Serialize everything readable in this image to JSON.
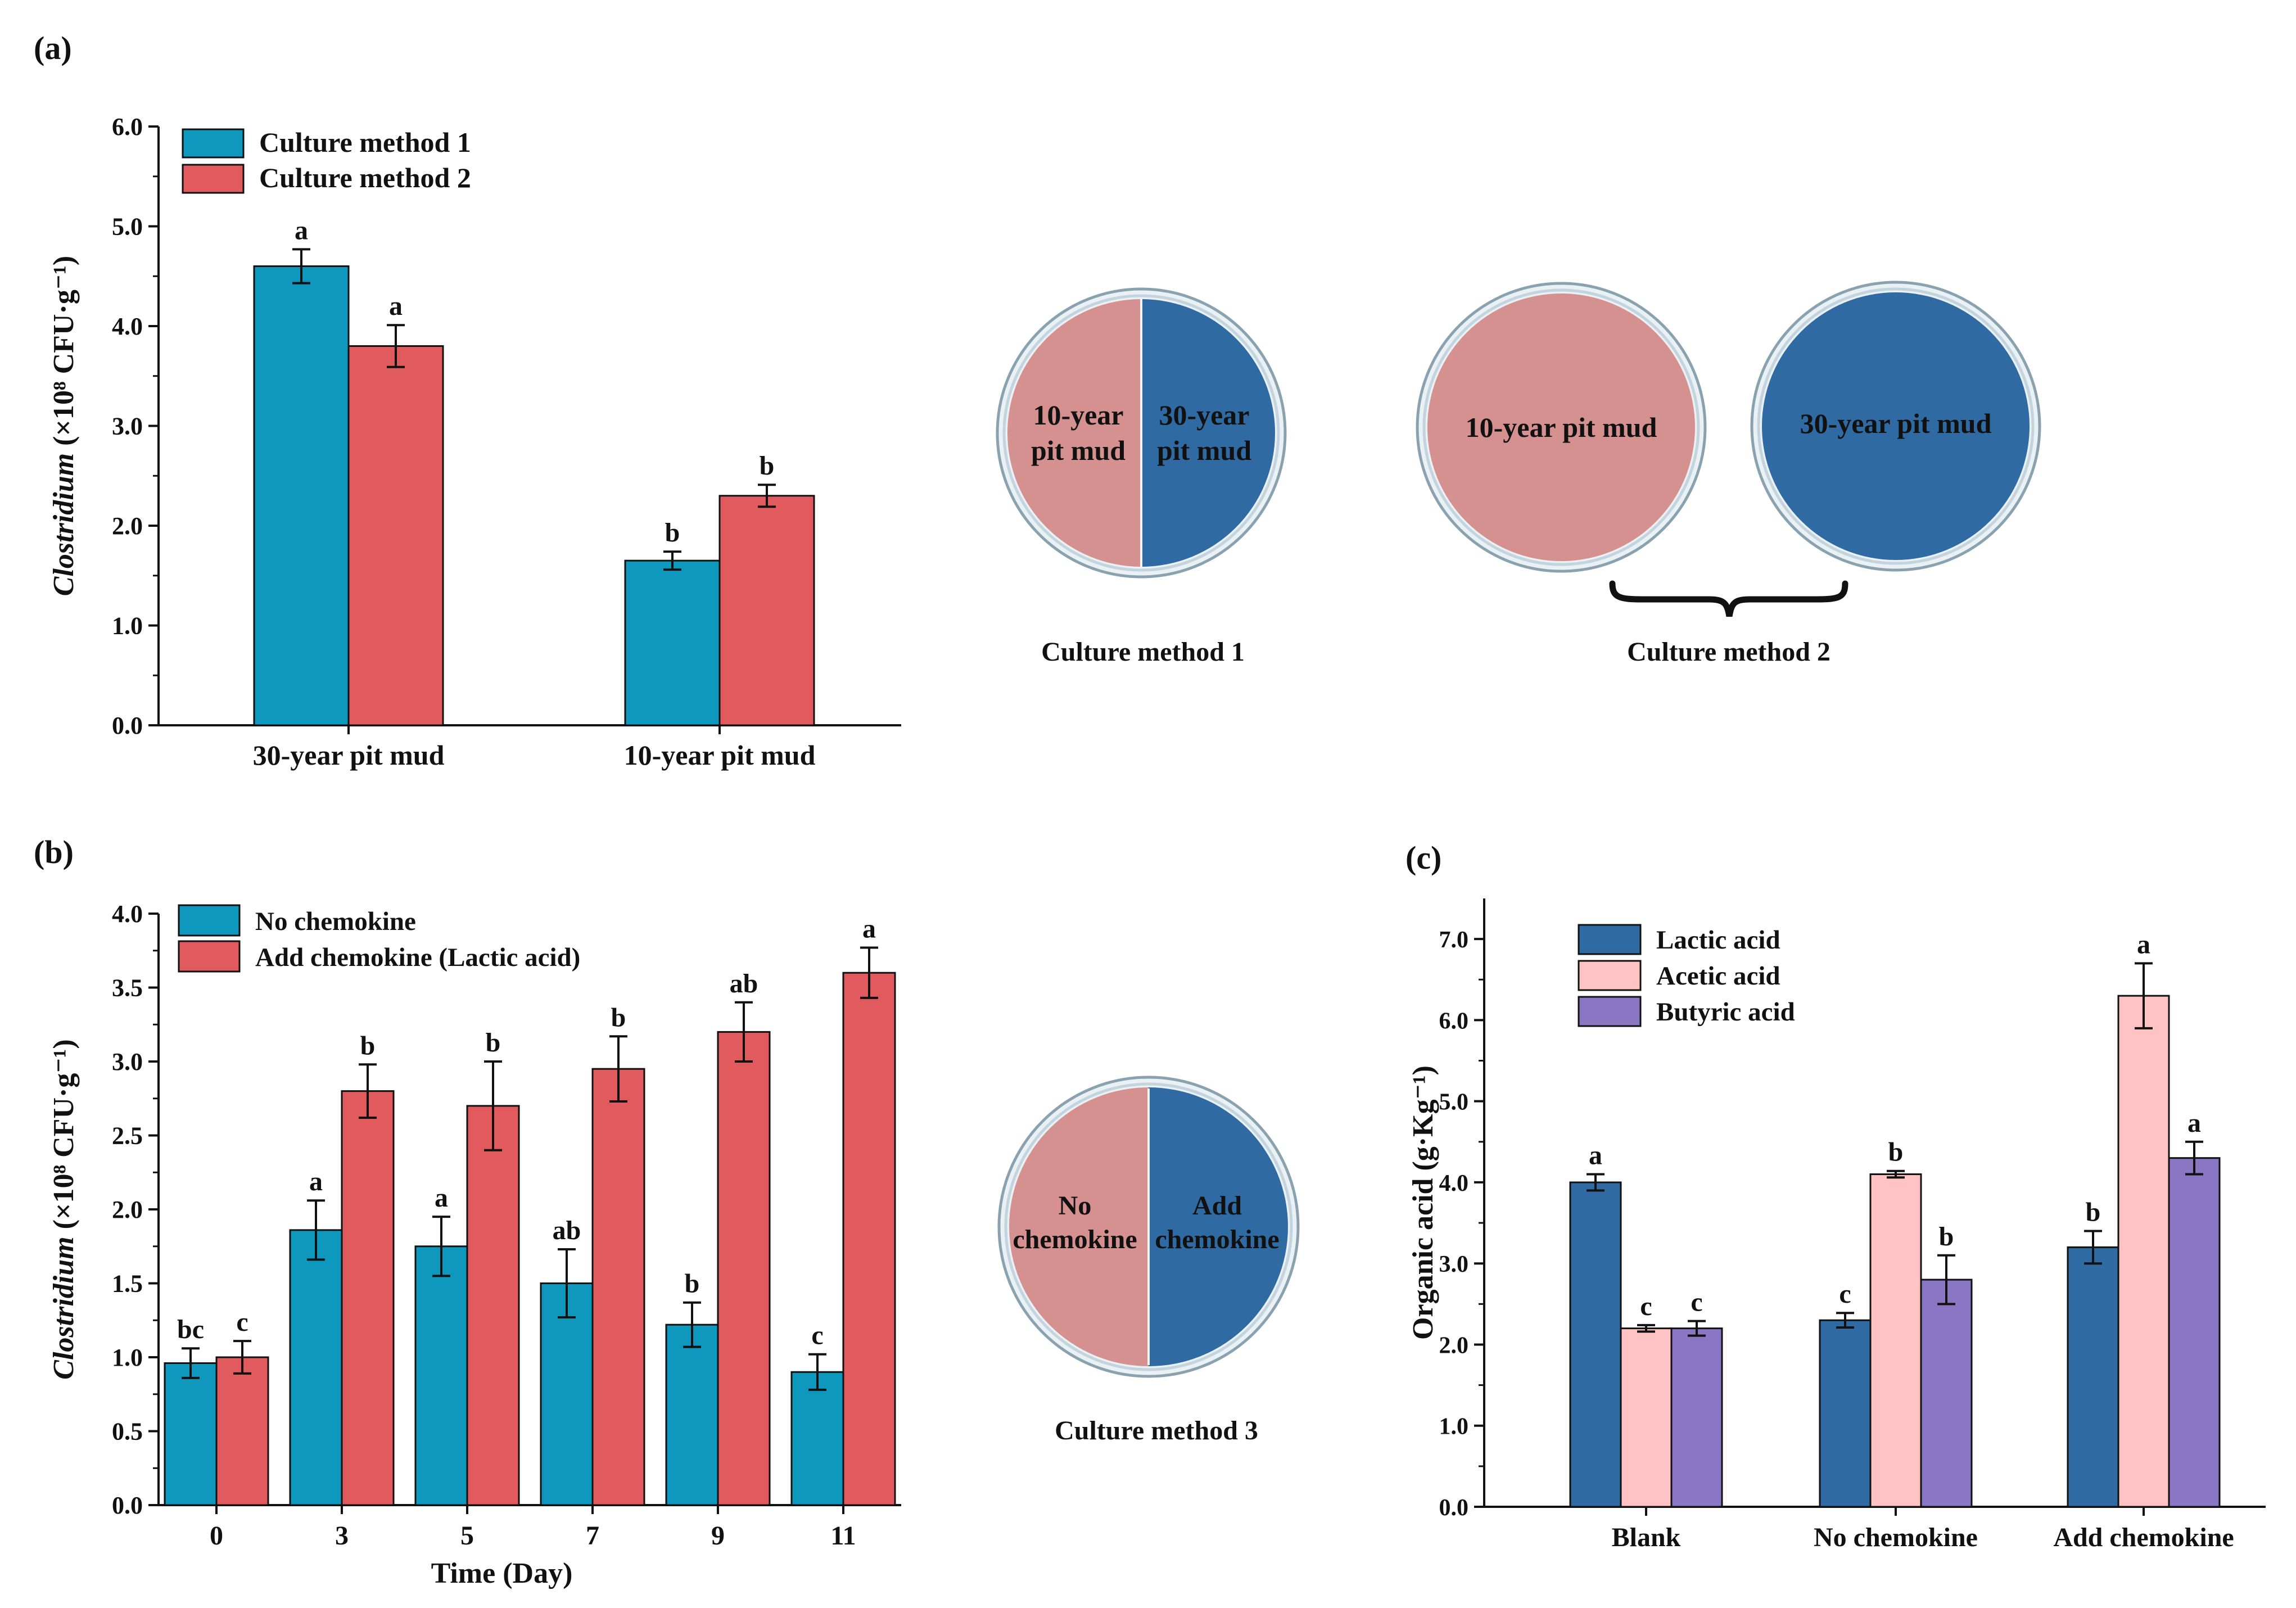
{
  "panel_labels": {
    "a": "(a)",
    "b": "(b)",
    "c": "(c)"
  },
  "colors": {
    "teal": "#0e98bd",
    "red": "#e05a5e",
    "navy": "#2f6aa3",
    "pink": "#ffc3c3",
    "purple": "#8a77c4",
    "plate_pink": "#d59090",
    "plate_blue": "#2f6aa3",
    "plate_rim": "#d3dfe6"
  },
  "chart_data": [
    {
      "id": "a",
      "type": "bar",
      "categories": [
        "30-year pit mud",
        "10-year pit mud"
      ],
      "series": [
        {
          "name": "Culture method 1",
          "color": "#0e98bd",
          "values": [
            4.6,
            1.65
          ],
          "errors": [
            0.17,
            0.09
          ],
          "letters": [
            "a",
            "b"
          ]
        },
        {
          "name": "Culture method 2",
          "color": "#e05a5e",
          "values": [
            3.8,
            2.3
          ],
          "errors": [
            0.21,
            0.11
          ],
          "letters": [
            "a",
            "b"
          ]
        }
      ],
      "ylabel_italic": "Clostridium",
      "ylabel_unit": " (×10⁸ CFU·g⁻¹)",
      "ylim": [
        0,
        6
      ],
      "yticks": [
        "0.0",
        "1.0",
        "2.0",
        "3.0",
        "4.0",
        "5.0",
        "6.0"
      ],
      "legend": "top-left"
    },
    {
      "id": "b",
      "type": "bar",
      "categories": [
        "0",
        "3",
        "5",
        "7",
        "9",
        "11"
      ],
      "series": [
        {
          "name": "No chemokine",
          "color": "#0e98bd",
          "values": [
            0.96,
            1.86,
            1.75,
            1.5,
            1.22,
            0.9
          ],
          "errors": [
            0.1,
            0.2,
            0.2,
            0.23,
            0.15,
            0.12
          ],
          "letters": [
            "bc",
            "a",
            "a",
            "ab",
            "b",
            "c"
          ]
        },
        {
          "name": "Add chemokine (Lactic acid)",
          "color": "#e05a5e",
          "values": [
            1.0,
            2.8,
            2.7,
            2.95,
            3.2,
            3.6
          ],
          "errors": [
            0.11,
            0.18,
            0.3,
            0.22,
            0.2,
            0.17
          ],
          "letters": [
            "c",
            "b",
            "b",
            "b",
            "ab",
            "a"
          ]
        }
      ],
      "xlabel": "Time (Day)",
      "ylabel_italic": "Clostridium",
      "ylabel_unit": " (×10⁸ CFU·g⁻¹)",
      "ylim": [
        0,
        4
      ],
      "yticks": [
        "0.0",
        "0.5",
        "1.0",
        "1.5",
        "2.0",
        "2.5",
        "3.0",
        "3.5",
        "4.0"
      ],
      "legend": "top-left"
    },
    {
      "id": "c",
      "type": "bar",
      "categories": [
        "Blank",
        "No chemokine",
        "Add chemokine"
      ],
      "series": [
        {
          "name": "Lactic acid",
          "color": "#2f6aa3",
          "values": [
            4.0,
            2.3,
            3.2
          ],
          "errors": [
            0.1,
            0.09,
            0.2
          ],
          "letters": [
            "a",
            "c",
            "b"
          ]
        },
        {
          "name": "Acetic acid",
          "color": "#ffc3c3",
          "values": [
            2.2,
            4.1,
            6.3
          ],
          "errors": [
            0.04,
            0.04,
            0.4
          ],
          "letters": [
            "c",
            "b",
            "a"
          ]
        },
        {
          "name": "Butyric acid",
          "color": "#8a77c4",
          "values": [
            2.2,
            2.8,
            4.3
          ],
          "errors": [
            0.09,
            0.3,
            0.2
          ],
          "letters": [
            "c",
            "b",
            "a"
          ]
        }
      ],
      "ylabel": "Organic acid (g·Kg⁻¹)",
      "ylim": [
        0,
        7.5
      ],
      "yticks": [
        "0.0",
        "1.0",
        "2.0",
        "3.0",
        "4.0",
        "5.0",
        "6.0",
        "7.0"
      ],
      "legend": "top-left"
    }
  ],
  "plates": {
    "method1": {
      "left_text": [
        "10-year",
        "pit mud"
      ],
      "right_text": [
        "30-year",
        "pit mud"
      ],
      "caption": "Culture method 1"
    },
    "method2": {
      "left_text": "10-year pit mud",
      "right_text": "30-year pit mud",
      "caption": "Culture method 2"
    },
    "method3": {
      "left_text": [
        "No",
        "chemokine"
      ],
      "right_text": [
        "Add",
        "chemokine"
      ],
      "caption": "Culture method 3"
    }
  }
}
